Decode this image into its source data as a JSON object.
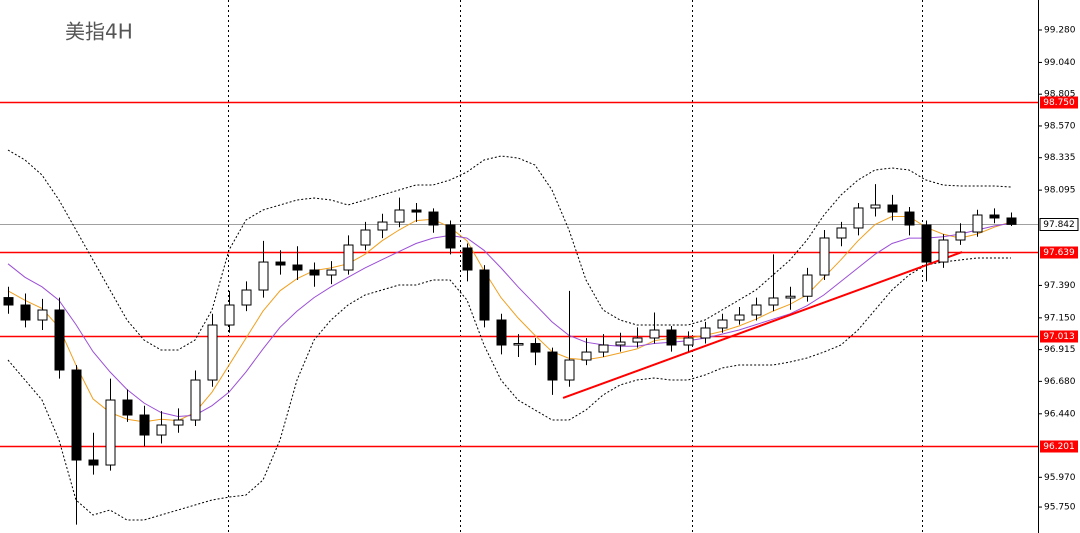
{
  "chart_data": {
    "type": "candlestick",
    "title": "美指4H",
    "ylim": [
      95.558,
      99.502
    ],
    "yticks": [
      {
        "value": 99.28,
        "label": "99.280"
      },
      {
        "value": 99.04,
        "label": "99.040"
      },
      98.805,
      {
        "value": 98.57,
        "label": "98.570"
      },
      98.335,
      98.095,
      {
        "value": 97.39,
        "label": "97.390"
      },
      {
        "value": 97.15,
        "label": "97.150"
      },
      96.915,
      {
        "value": 96.68,
        "label": "96.680"
      },
      {
        "value": 96.44,
        "label": "96.440"
      },
      {
        "value": 95.97,
        "label": "95.970"
      },
      {
        "value": 95.75,
        "label": "95.750"
      }
    ],
    "xgrid": [
      12.94,
      26.59,
      40.24,
      53.76
    ],
    "up_color": "#ffffff",
    "down_color": "#000000",
    "open": [
      97.3,
      97.245,
      97.134,
      97.208,
      96.764,
      96.098,
      96.061,
      96.542,
      96.431,
      96.283,
      96.357,
      96.394,
      96.69,
      97.097,
      97.245,
      97.356,
      97.563,
      97.541,
      97.504,
      97.467,
      97.504,
      97.689,
      97.8,
      97.859,
      97.948,
      97.933,
      97.837,
      97.667,
      97.504,
      97.134,
      96.949,
      96.96,
      96.897,
      96.69,
      96.838,
      96.897,
      96.949,
      96.971,
      97.001,
      97.06,
      96.949,
      97.001,
      97.075,
      97.134,
      97.171,
      97.245,
      97.297,
      97.31,
      97.467,
      97.741,
      97.815,
      97.963,
      97.985,
      97.933,
      97.837,
      97.563,
      97.726,
      97.785,
      97.911,
      97.889
    ],
    "high": [
      97.38,
      97.33,
      97.29,
      97.3,
      96.8,
      96.3,
      96.7,
      96.62,
      96.5,
      96.46,
      96.48,
      96.76,
      97.18,
      97.35,
      97.42,
      97.72,
      97.65,
      97.68,
      97.56,
      97.57,
      97.76,
      97.86,
      97.92,
      98.04,
      98.0,
      97.96,
      97.87,
      97.7,
      97.54,
      97.18,
      97.03,
      97.0,
      96.93,
      97.35,
      97.0,
      97.03,
      97.04,
      97.08,
      97.19,
      97.09,
      97.05,
      97.12,
      97.18,
      97.23,
      97.3,
      97.62,
      97.38,
      97.52,
      97.8,
      97.86,
      98.0,
      98.14,
      98.06,
      97.97,
      97.87,
      97.77,
      97.85,
      97.95,
      97.96,
      97.93
    ],
    "low": [
      97.18,
      97.08,
      97.06,
      96.7,
      95.62,
      95.99,
      96.02,
      96.38,
      96.2,
      96.22,
      96.3,
      96.35,
      96.64,
      97.04,
      97.2,
      97.3,
      97.47,
      97.43,
      97.38,
      97.4,
      97.47,
      97.65,
      97.74,
      97.82,
      97.86,
      97.78,
      97.62,
      97.42,
      97.08,
      96.88,
      96.86,
      96.8,
      96.58,
      96.64,
      96.8,
      96.86,
      96.9,
      96.93,
      96.96,
      96.9,
      96.9,
      96.96,
      97.04,
      97.1,
      97.13,
      97.2,
      97.21,
      97.27,
      97.43,
      97.68,
      97.76,
      97.9,
      97.87,
      97.76,
      97.42,
      97.52,
      97.69,
      97.75,
      97.85,
      97.83
    ],
    "close": [
      97.245,
      97.134,
      97.208,
      96.764,
      96.098,
      96.061,
      96.542,
      96.431,
      96.283,
      96.357,
      96.394,
      96.69,
      97.097,
      97.245,
      97.356,
      97.563,
      97.541,
      97.504,
      97.467,
      97.504,
      97.689,
      97.8,
      97.859,
      97.948,
      97.933,
      97.837,
      97.667,
      97.504,
      97.134,
      96.949,
      96.96,
      96.897,
      96.69,
      96.838,
      96.897,
      96.949,
      96.971,
      97.001,
      97.06,
      96.949,
      97.001,
      97.075,
      97.134,
      97.171,
      97.245,
      97.297,
      97.31,
      97.467,
      97.741,
      97.815,
      97.963,
      97.985,
      97.933,
      97.837,
      97.563,
      97.726,
      97.785,
      97.911,
      97.889,
      97.842
    ],
    "lines": [
      {
        "color": "#f0a020",
        "style": "solid",
        "values": [
          97.35,
          97.28,
          97.22,
          97.08,
          96.8,
          96.55,
          96.45,
          96.4,
          96.38,
          96.4,
          96.39,
          96.45,
          96.6,
          96.8,
          97.0,
          97.2,
          97.35,
          97.44,
          97.5,
          97.52,
          97.55,
          97.62,
          97.72,
          97.8,
          97.87,
          97.88,
          97.82,
          97.72,
          97.5,
          97.3,
          97.15,
          97.02,
          96.9,
          96.85,
          96.84,
          96.86,
          96.89,
          96.92,
          96.98,
          97.0,
          97.0,
          97.02,
          97.05,
          97.09,
          97.14,
          97.2,
          97.25,
          97.32,
          97.45,
          97.58,
          97.72,
          97.84,
          97.9,
          97.9,
          97.82,
          97.77,
          97.74,
          97.77,
          97.82,
          97.86
        ]
      },
      {
        "color": "#9b4fd6",
        "style": "solid",
        "values": [
          97.55,
          97.45,
          97.38,
          97.28,
          97.1,
          96.9,
          96.75,
          96.62,
          96.52,
          96.45,
          96.42,
          96.43,
          96.5,
          96.6,
          96.75,
          96.92,
          97.08,
          97.2,
          97.3,
          97.38,
          97.45,
          97.52,
          97.58,
          97.64,
          97.7,
          97.74,
          97.76,
          97.74,
          97.65,
          97.52,
          97.38,
          97.25,
          97.12,
          97.02,
          96.97,
          96.95,
          96.94,
          96.94,
          96.96,
          96.97,
          96.98,
          97.0,
          97.03,
          97.06,
          97.1,
          97.14,
          97.18,
          97.24,
          97.32,
          97.42,
          97.52,
          97.62,
          97.7,
          97.74,
          97.74,
          97.75,
          97.77,
          97.8,
          97.83,
          97.85
        ]
      },
      {
        "color": "#000000",
        "style": "dashed",
        "values": [
          98.392,
          98.318,
          98.207,
          98.022,
          97.8,
          97.578,
          97.356,
          97.134,
          96.986,
          96.912,
          96.912,
          96.986,
          97.208,
          97.652,
          97.874,
          97.948,
          97.985,
          98.022,
          98.037,
          98.022,
          97.985,
          98.022,
          98.059,
          98.096,
          98.133,
          98.133,
          98.17,
          98.229,
          98.318,
          98.348,
          98.333,
          98.281,
          98.096,
          97.8,
          97.43,
          97.208,
          97.134,
          97.097,
          97.097,
          97.097,
          97.097,
          97.134,
          97.208,
          97.282,
          97.356,
          97.467,
          97.578,
          97.726,
          97.911,
          98.059,
          98.17,
          98.244,
          98.259,
          98.244,
          98.17,
          98.133,
          98.126,
          98.126,
          98.126,
          98.118
        ]
      },
      {
        "color": "#000000",
        "style": "dashed",
        "values": [
          96.838,
          96.69,
          96.542,
          96.246,
          95.802,
          95.691,
          95.728,
          95.654,
          95.654,
          95.691,
          95.728,
          95.765,
          95.802,
          95.824,
          95.839,
          95.95,
          96.246,
          96.69,
          96.986,
          97.134,
          97.245,
          97.319,
          97.356,
          97.393,
          97.393,
          97.43,
          97.43,
          97.282,
          96.949,
          96.69,
          96.542,
          96.468,
          96.394,
          96.394,
          96.468,
          96.579,
          96.653,
          96.69,
          96.705,
          96.69,
          96.69,
          96.727,
          96.779,
          96.801,
          96.801,
          96.801,
          96.823,
          96.853,
          96.897,
          96.949,
          97.06,
          97.208,
          97.356,
          97.467,
          97.541,
          97.563,
          97.578,
          97.593,
          97.593,
          97.593
        ]
      }
    ],
    "levels": [
      {
        "value": 98.75,
        "label": "98.750"
      },
      {
        "value": 97.639,
        "label": "97.639"
      },
      {
        "value": 97.013,
        "label": "97.013"
      },
      {
        "value": 96.201,
        "label": "96.201"
      }
    ],
    "level_color": "#ff0000",
    "current_price": 97.842,
    "trendline": {
      "color": "#ff0000",
      "x": [
        32.65,
        56.12
      ],
      "y": [
        96.557,
        97.637
      ]
    }
  }
}
